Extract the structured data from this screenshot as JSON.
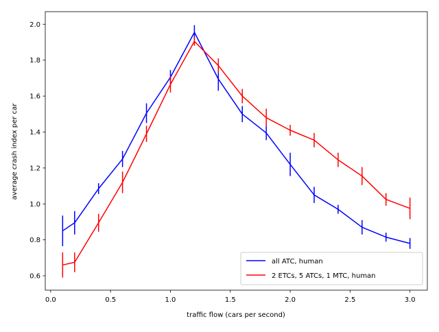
{
  "chart_data": {
    "type": "line",
    "title": "",
    "xlabel": "traffic flow (cars per second)",
    "ylabel": "average crash index per car",
    "xlim": [
      -0.045,
      3.145
    ],
    "ylim": [
      0.52,
      2.07
    ],
    "xticks": [
      0.0,
      0.5,
      1.0,
      1.5,
      2.0,
      2.5,
      3.0
    ],
    "xtick_labels": [
      "0.0",
      "0.5",
      "1.0",
      "1.5",
      "2.0",
      "2.5",
      "3.0"
    ],
    "yticks": [
      0.6,
      0.8,
      1.0,
      1.2,
      1.4,
      1.6,
      1.8,
      2.0
    ],
    "ytick_labels": [
      "0.6",
      "0.8",
      "1.0",
      "1.2",
      "1.4",
      "1.6",
      "1.8",
      "2.0"
    ],
    "grid": false,
    "legend_position": "lower-right",
    "x": [
      0.1,
      0.2,
      0.4,
      0.6,
      0.8,
      1.0,
      1.2,
      1.4,
      1.6,
      1.8,
      2.0,
      2.2,
      2.4,
      2.6,
      2.8,
      3.0
    ],
    "series": [
      {
        "name": "all ATC, human",
        "color": "#0000ff",
        "values": [
          0.85,
          0.895,
          1.085,
          1.25,
          1.505,
          1.705,
          1.955,
          1.695,
          1.5,
          1.395,
          1.22,
          1.05,
          0.97,
          0.87,
          0.815,
          0.78
        ],
        "errors": [
          0.085,
          0.065,
          0.03,
          0.045,
          0.055,
          0.04,
          0.04,
          0.065,
          0.045,
          0.04,
          0.065,
          0.045,
          0.025,
          0.04,
          0.025,
          0.03
        ]
      },
      {
        "name": "2 ETCs, 5 ATCs, 1 MTC, human",
        "color": "#ff0000",
        "values": [
          0.66,
          0.675,
          0.895,
          1.12,
          1.39,
          1.665,
          1.905,
          1.77,
          1.6,
          1.48,
          1.41,
          1.355,
          1.245,
          1.155,
          1.025,
          0.975
        ],
        "errors": [
          0.07,
          0.055,
          0.05,
          0.06,
          0.045,
          0.045,
          0.025,
          0.04,
          0.04,
          0.05,
          0.03,
          0.04,
          0.04,
          0.05,
          0.035,
          0.06
        ]
      }
    ]
  }
}
